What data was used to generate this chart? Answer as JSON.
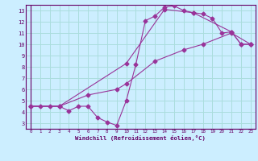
{
  "xlabel": "Windchill (Refroidissement éolien,°C)",
  "bg_color": "#cceeff",
  "grid_color": "#aadddd",
  "line_color": "#993399",
  "xlim": [
    -0.5,
    23.5
  ],
  "ylim": [
    2.5,
    13.5
  ],
  "xticks": [
    0,
    1,
    2,
    3,
    4,
    5,
    6,
    7,
    8,
    9,
    10,
    11,
    12,
    13,
    14,
    15,
    16,
    17,
    18,
    19,
    20,
    21,
    22,
    23
  ],
  "yticks": [
    3,
    4,
    5,
    6,
    7,
    8,
    9,
    10,
    11,
    12,
    13
  ],
  "line1_x": [
    0,
    1,
    2,
    3,
    4,
    5,
    6,
    7,
    8,
    9,
    10,
    11,
    12,
    13,
    14,
    15,
    16,
    17,
    18,
    19,
    20,
    21,
    22,
    23
  ],
  "line1_y": [
    4.5,
    4.5,
    4.5,
    4.5,
    4.1,
    4.5,
    4.5,
    3.5,
    3.1,
    2.8,
    5.0,
    8.2,
    12.1,
    12.5,
    13.3,
    13.4,
    13.0,
    12.8,
    12.7,
    12.3,
    11.0,
    11.1,
    10.0,
    10.0
  ],
  "line2_x": [
    0,
    3,
    10,
    14,
    17,
    21,
    22,
    23
  ],
  "line2_y": [
    4.5,
    4.5,
    8.3,
    13.1,
    12.8,
    11.1,
    10.0,
    10.0
  ],
  "line3_x": [
    0,
    3,
    6,
    9,
    10,
    13,
    16,
    18,
    21,
    23
  ],
  "line3_y": [
    4.5,
    4.5,
    5.5,
    6.0,
    6.5,
    8.5,
    9.5,
    10.0,
    11.0,
    10.0
  ]
}
